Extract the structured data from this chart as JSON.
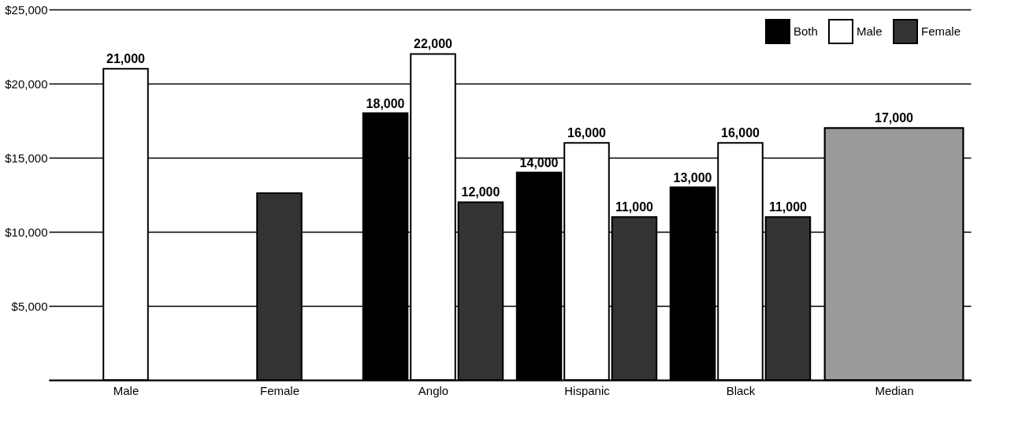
{
  "chart_data": {
    "type": "bar",
    "categories": [
      "Male",
      "Female",
      "Anglo",
      "Hispanic",
      "Black",
      "Median"
    ],
    "series": [
      {
        "name": "Both",
        "color": "#000000",
        "values": [
          null,
          null,
          18000,
          14000,
          13000,
          null
        ],
        "value_labels": [
          null,
          null,
          "18,000",
          "14,000",
          "13,000",
          null
        ]
      },
      {
        "name": "Male",
        "color": "#ffffff",
        "values": [
          21000,
          null,
          22000,
          16000,
          16000,
          null
        ],
        "value_labels": [
          "21,000",
          null,
          "22,000",
          "16,000",
          "16,000",
          null
        ]
      },
      {
        "name": "Female",
        "color": "#333333",
        "values": [
          null,
          12600,
          12000,
          11000,
          11000,
          null
        ],
        "value_labels": [
          null,
          null,
          "12,000",
          "11,000",
          "11,000",
          null
        ]
      },
      {
        "color": "#9a9a9a",
        "values": [
          null,
          null,
          null,
          null,
          null,
          17000
        ],
        "value_labels": [
          null,
          null,
          null,
          null,
          null,
          "17,000"
        ]
      }
    ],
    "ylim": [
      0,
      25000
    ],
    "yticks": [
      {
        "value": 0,
        "label": null
      },
      {
        "value": 5000,
        "label": "$5,000"
      },
      {
        "value": 10000,
        "label": "$10,000"
      },
      {
        "value": 15000,
        "label": "$15,000"
      },
      {
        "value": 20000,
        "label": "$20,000"
      },
      {
        "value": 25000,
        "label": "$25,000"
      }
    ],
    "grid": "y",
    "legend": "top right"
  }
}
